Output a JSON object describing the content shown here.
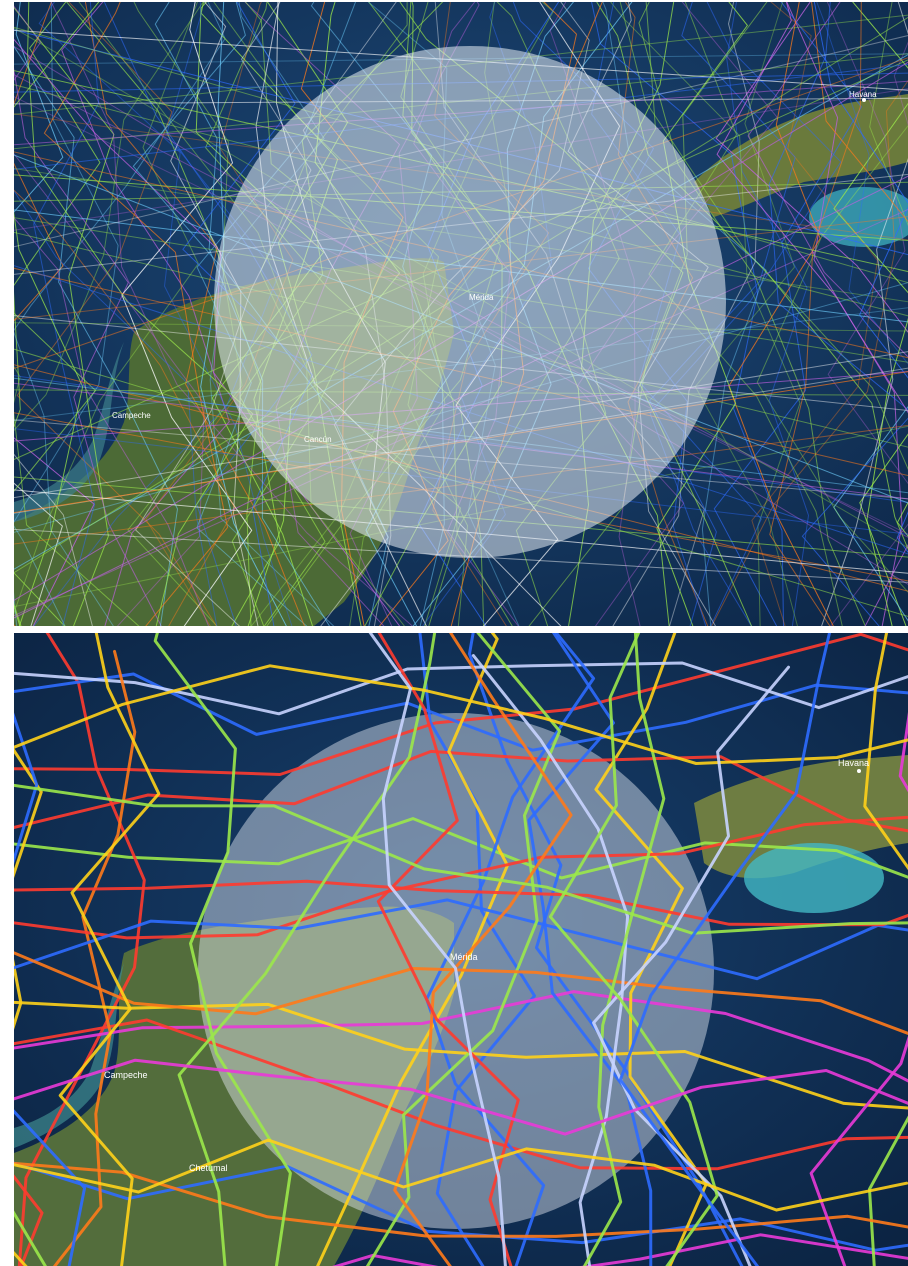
{
  "panels": [
    {
      "id": "top",
      "view": "dense-historical-tracks",
      "labels": {
        "havana": "Havana",
        "merida": "Mérida",
        "cancun": "Cancún",
        "campeche": "Campeche"
      }
    },
    {
      "id": "bottom",
      "view": "filtered-tracks",
      "labels": {
        "havana": "Havana",
        "merida": "Mérida",
        "campeche": "Campeche",
        "chetumal": "Chetumal"
      }
    }
  ],
  "colors": {
    "ocean": "#12305a",
    "land": "#4f6b3a",
    "circle_overlay": "#e8eef6",
    "track_green": "#9be84a",
    "track_blue": "#2e6bff",
    "track_orange": "#ff7a1a",
    "track_yellow": "#ffd21a",
    "track_magenta": "#e93ad8",
    "track_red": "#ff3b2f"
  }
}
